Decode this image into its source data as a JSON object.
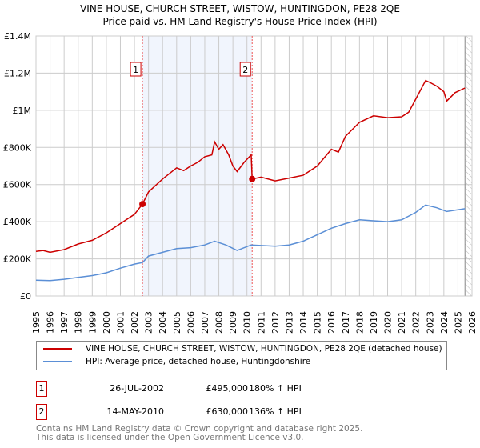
{
  "chart_data": {
    "type": "line",
    "title": "VINE HOUSE, CHURCH STREET, WISTOW, HUNTINGDON, PE28 2QE",
    "subtitle": "Price paid vs. HM Land Registry's House Price Index (HPI)",
    "xlim": [
      1995,
      2026
    ],
    "ylim": [
      0,
      1400000
    ],
    "grid": true,
    "x_ticks": [
      "1995",
      "1996",
      "1997",
      "1998",
      "1999",
      "2000",
      "2001",
      "2002",
      "2003",
      "2004",
      "2005",
      "2006",
      "2007",
      "2008",
      "2009",
      "2010",
      "2011",
      "2012",
      "2013",
      "2014",
      "2015",
      "2016",
      "2017",
      "2018",
      "2019",
      "2020",
      "2021",
      "2022",
      "2023",
      "2024",
      "2025",
      "2026"
    ],
    "y_ticks": [
      {
        "v": 0,
        "label": "£0"
      },
      {
        "v": 200000,
        "label": "£200K"
      },
      {
        "v": 400000,
        "label": "£400K"
      },
      {
        "v": 600000,
        "label": "£600K"
      },
      {
        "v": 800000,
        "label": "£800K"
      },
      {
        "v": 1000000,
        "label": "£1M"
      },
      {
        "v": 1200000,
        "label": "£1.2M"
      },
      {
        "v": 1400000,
        "label": "£1.4M"
      }
    ],
    "shaded_range": [
      2002.57,
      2010.37
    ],
    "future_hatch_from": 2025.5,
    "series": [
      {
        "name": "VINE HOUSE, CHURCH STREET, WISTOW, HUNTINGDON, PE28 2QE (detached house)",
        "color": "#cc0000",
        "x": [
          1995,
          1995.5,
          1996,
          1997,
          1998,
          1999,
          2000,
          2001,
          2002,
          2002.57,
          2003,
          2004,
          2005,
          2005.5,
          2006,
          2006.5,
          2007,
          2007.5,
          2007.7,
          2008,
          2008.3,
          2008.7,
          2009,
          2009.3,
          2009.8,
          2010.3,
          2010.37,
          2011,
          2012,
          2013,
          2014,
          2015,
          2016,
          2016.5,
          2017,
          2018,
          2019,
          2020,
          2021,
          2021.5,
          2022,
          2022.7,
          2023,
          2023.5,
          2024,
          2024.2,
          2024.8,
          2025.5
        ],
        "y": [
          240000,
          245000,
          235000,
          250000,
          280000,
          300000,
          340000,
          390000,
          440000,
          495000,
          560000,
          630000,
          690000,
          675000,
          700000,
          720000,
          750000,
          760000,
          830000,
          790000,
          815000,
          760000,
          700000,
          670000,
          720000,
          760000,
          630000,
          640000,
          620000,
          635000,
          650000,
          700000,
          790000,
          775000,
          860000,
          935000,
          970000,
          960000,
          965000,
          990000,
          1060000,
          1160000,
          1150000,
          1130000,
          1100000,
          1050000,
          1095000,
          1120000
        ]
      },
      {
        "name": "HPI: Average price, detached house, Huntingdonshire",
        "color": "#5b8fd6",
        "x": [
          1995,
          1996,
          1997,
          1998,
          1999,
          2000,
          2001,
          2002,
          2002.57,
          2003,
          2004,
          2005,
          2006,
          2007,
          2007.7,
          2008.5,
          2009.3,
          2010.3,
          2011,
          2012,
          2013,
          2014,
          2015,
          2016,
          2017,
          2018,
          2019,
          2020,
          2021,
          2022,
          2022.7,
          2023.5,
          2024.2,
          2025.5
        ],
        "y": [
          85000,
          83000,
          90000,
          100000,
          110000,
          125000,
          150000,
          172000,
          180000,
          215000,
          235000,
          255000,
          260000,
          275000,
          295000,
          275000,
          245000,
          275000,
          272000,
          268000,
          275000,
          295000,
          330000,
          365000,
          390000,
          410000,
          405000,
          400000,
          410000,
          450000,
          490000,
          475000,
          455000,
          470000
        ]
      }
    ],
    "sales": [
      {
        "n": "1",
        "x": 2002.57,
        "y": 495000
      },
      {
        "n": "2",
        "x": 2010.37,
        "y": 630000
      }
    ]
  },
  "legend": {
    "property": "VINE HOUSE, CHURCH STREET, WISTOW, HUNTINGDON, PE28 2QE (detached house)",
    "hpi": "HPI: Average price, detached house, Huntingdonshire"
  },
  "table": [
    {
      "n": "1",
      "date": "26-JUL-2002",
      "price": "£495,000",
      "hpi": "180% ↑ HPI"
    },
    {
      "n": "2",
      "date": "14-MAY-2010",
      "price": "£630,000",
      "hpi": "136% ↑ HPI"
    }
  ],
  "footer": {
    "line1": "Contains HM Land Registry data © Crown copyright and database right 2025.",
    "line2": "This data is licensed under the Open Government Licence v3.0."
  }
}
